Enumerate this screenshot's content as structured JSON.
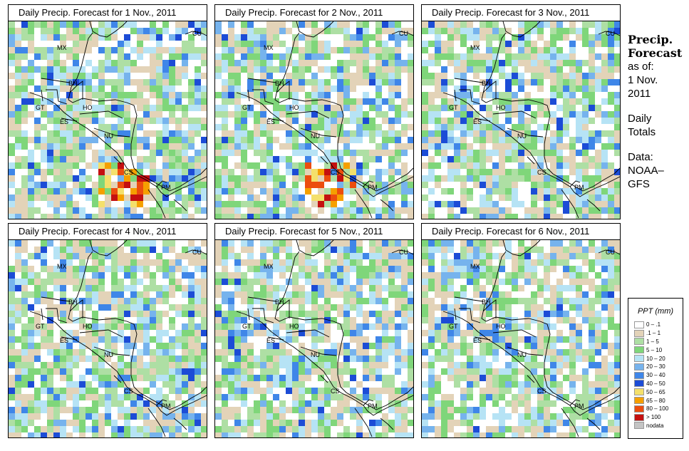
{
  "panels": [
    {
      "title": "Daily Precip. Forecast for  1 Nov., 2011"
    },
    {
      "title": "Daily Precip. Forecast for  2 Nov., 2011"
    },
    {
      "title": "Daily Precip. Forecast for  3 Nov., 2011"
    },
    {
      "title": "Daily Precip. Forecast for  4 Nov., 2011"
    },
    {
      "title": "Daily Precip. Forecast for  5 Nov., 2011"
    },
    {
      "title": "Daily Precip. Forecast for  6 Nov., 2011"
    }
  ],
  "country_labels": [
    "MX",
    "BH",
    "GT",
    "HO",
    "ES",
    "NU",
    "CS",
    "PM",
    "CU"
  ],
  "sidebar": {
    "title_line1": "Precip.",
    "title_line2": "Forecast",
    "asof_line1": "as of:",
    "asof_line2": "1 Nov.",
    "asof_line3": "2011",
    "daily_line1": "Daily",
    "daily_line2": "Totals",
    "source_line1": "Data:",
    "source_line2": "NOAA–",
    "source_line3": "GFS"
  },
  "legend": {
    "title": "PPT (mm)",
    "items": [
      {
        "label": "0 – .1",
        "color": "#ffffff"
      },
      {
        "label": ".1 – 1",
        "color": "#e3d3b8"
      },
      {
        "label": "1 – 5",
        "color": "#aedfa4"
      },
      {
        "label": "5 – 10",
        "color": "#7fd67a"
      },
      {
        "label": "10 – 20",
        "color": "#b6e3f5"
      },
      {
        "label": "20 – 30",
        "color": "#76b3ed"
      },
      {
        "label": "30 – 40",
        "color": "#3f86e8"
      },
      {
        "label": "40 – 50",
        "color": "#1c4cd6"
      },
      {
        "label": "50 – 65",
        "color": "#f4e06b"
      },
      {
        "label": "65 – 80",
        "color": "#f5a000"
      },
      {
        "label": "80 – 100",
        "color": "#ec4d0e"
      },
      {
        "label": "> 100",
        "color": "#c41010"
      },
      {
        "label": "nodata",
        "color": "#c4c4c4"
      }
    ]
  }
}
